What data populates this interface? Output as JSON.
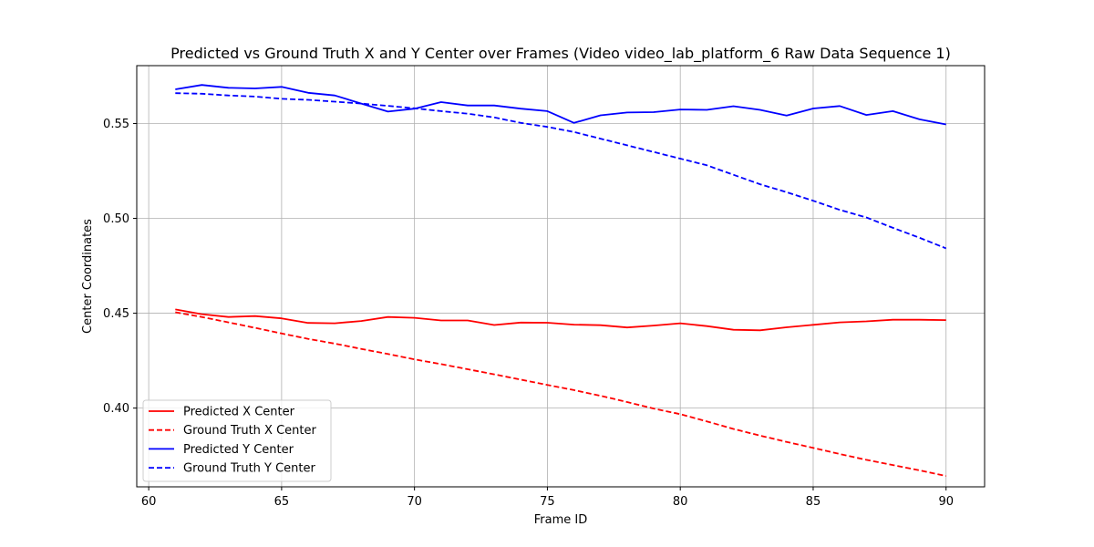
{
  "chart_data": {
    "type": "line",
    "title": "Predicted vs Ground Truth X and Y Center over Frames (Video video_lab_platform_6 Raw Data Sequence 1)",
    "xlabel": "Frame ID",
    "ylabel": "Center Coordinates",
    "xlim": [
      59.55,
      91.45
    ],
    "ylim": [
      0.3585,
      0.5805
    ],
    "xticks": [
      60,
      65,
      70,
      75,
      80,
      85,
      90
    ],
    "xtick_labels": [
      "60",
      "65",
      "70",
      "75",
      "80",
      "85",
      "90"
    ],
    "yticks": [
      0.4,
      0.45,
      0.5,
      0.55
    ],
    "ytick_labels": [
      "0.40",
      "0.45",
      "0.50",
      "0.55"
    ],
    "grid": true,
    "legend_position": "lower-left",
    "x": [
      61,
      62,
      63,
      64,
      65,
      66,
      67,
      68,
      69,
      70,
      71,
      72,
      73,
      74,
      75,
      76,
      77,
      78,
      79,
      80,
      81,
      82,
      83,
      84,
      85,
      86,
      87,
      88,
      89,
      90
    ],
    "series": [
      {
        "name": "Predicted X Center",
        "color": "#ff0000",
        "dashed": false,
        "values": [
          0.452,
          0.4495,
          0.448,
          0.4485,
          0.4473,
          0.4449,
          0.4447,
          0.4459,
          0.448,
          0.4476,
          0.4462,
          0.4462,
          0.4438,
          0.4451,
          0.445,
          0.444,
          0.4437,
          0.4425,
          0.4435,
          0.4447,
          0.4432,
          0.4413,
          0.441,
          0.4426,
          0.4439,
          0.4452,
          0.4457,
          0.4466,
          0.4466,
          0.4464
        ]
      },
      {
        "name": "Ground Truth X Center",
        "color": "#ff0000",
        "dashed": true,
        "values": [
          0.4505,
          0.448,
          0.4452,
          0.4423,
          0.4393,
          0.4365,
          0.434,
          0.4312,
          0.4285,
          0.4257,
          0.4232,
          0.4205,
          0.4178,
          0.415,
          0.4122,
          0.4095,
          0.4065,
          0.4032,
          0.3998,
          0.3968,
          0.393,
          0.389,
          0.3855,
          0.3822,
          0.379,
          0.3758,
          0.3727,
          0.37,
          0.3672,
          0.3642
        ]
      },
      {
        "name": "Predicted Y Center",
        "color": "#0000ff",
        "dashed": false,
        "values": [
          0.568,
          0.5703,
          0.5688,
          0.5685,
          0.5693,
          0.5662,
          0.5648,
          0.5605,
          0.5563,
          0.5578,
          0.5613,
          0.5595,
          0.5595,
          0.5578,
          0.5565,
          0.5503,
          0.5543,
          0.5558,
          0.556,
          0.5574,
          0.5572,
          0.5591,
          0.5572,
          0.5542,
          0.5579,
          0.5592,
          0.5545,
          0.5565,
          0.5522,
          0.5495
        ]
      },
      {
        "name": "Ground Truth Y Center",
        "color": "#0000ff",
        "dashed": true,
        "values": [
          0.566,
          0.5657,
          0.5648,
          0.5642,
          0.563,
          0.5625,
          0.5615,
          0.5605,
          0.5593,
          0.558,
          0.5565,
          0.5552,
          0.5532,
          0.5503,
          0.5482,
          0.5455,
          0.542,
          0.5385,
          0.535,
          0.5315,
          0.528,
          0.523,
          0.518,
          0.5138,
          0.5093,
          0.5045,
          0.5005,
          0.495,
          0.4898,
          0.4842
        ]
      }
    ]
  }
}
